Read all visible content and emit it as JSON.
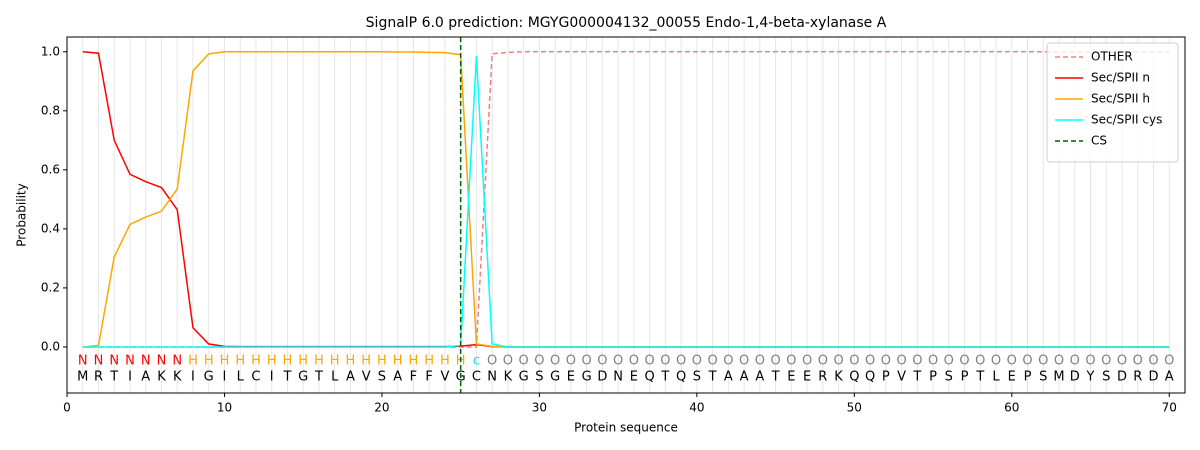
{
  "chart_data": {
    "type": "line",
    "title": "SignalP 6.0 prediction: MGYG000004132_00055 Endo-1,4-beta-xylanase A",
    "xlabel": "Protein sequence",
    "ylabel": "Probability",
    "x": [
      1,
      2,
      3,
      4,
      5,
      6,
      7,
      8,
      9,
      10,
      11,
      12,
      13,
      14,
      15,
      16,
      17,
      18,
      19,
      20,
      21,
      22,
      23,
      24,
      25,
      26,
      27,
      28,
      29,
      30,
      31,
      32,
      33,
      34,
      35,
      36,
      37,
      38,
      39,
      40,
      41,
      42,
      43,
      44,
      45,
      46,
      47,
      48,
      49,
      50,
      51,
      52,
      53,
      54,
      55,
      56,
      57,
      58,
      59,
      60,
      61,
      62,
      63,
      64,
      65,
      66,
      67,
      68,
      69,
      70
    ],
    "sequence": [
      "M",
      "R",
      "T",
      "I",
      "A",
      "K",
      "K",
      "I",
      "G",
      "I",
      "L",
      "C",
      "I",
      "T",
      "G",
      "T",
      "L",
      "A",
      "V",
      "S",
      "A",
      "F",
      "F",
      "V",
      "G",
      "C",
      "N",
      "K",
      "G",
      "S",
      "G",
      "E",
      "G",
      "D",
      "N",
      "E",
      "Q",
      "T",
      "Q",
      "S",
      "T",
      "A",
      "A",
      "A",
      "T",
      "E",
      "E",
      "R",
      "K",
      "Q",
      "Q",
      "P",
      "V",
      "T",
      "P",
      "S",
      "P",
      "T",
      "L",
      "E",
      "P",
      "S",
      "M",
      "D",
      "Y",
      "S",
      "D",
      "R",
      "D",
      "A"
    ],
    "regions": [
      "N",
      "N",
      "N",
      "N",
      "N",
      "N",
      "N",
      "H",
      "H",
      "H",
      "H",
      "H",
      "H",
      "H",
      "H",
      "H",
      "H",
      "H",
      "H",
      "H",
      "H",
      "H",
      "H",
      "H",
      "H",
      "c",
      "O",
      "O",
      "O",
      "O",
      "O",
      "O",
      "O",
      "O",
      "O",
      "O",
      "O",
      "O",
      "O",
      "O",
      "O",
      "O",
      "O",
      "O",
      "O",
      "O",
      "O",
      "O",
      "O",
      "O",
      "O",
      "O",
      "O",
      "O",
      "O",
      "O",
      "O",
      "O",
      "O",
      "O",
      "O",
      "O",
      "O",
      "O",
      "O",
      "O",
      "O",
      "O",
      "O",
      "O"
    ],
    "region_colors": {
      "N": "#ff0000",
      "H": "#ffa500",
      "c": "#00e5ee",
      "O": "#808080"
    },
    "series": [
      {
        "name": "OTHER",
        "color": "#f08080",
        "dash": true,
        "values": [
          0,
          0,
          0,
          0,
          0,
          0,
          0,
          0,
          0,
          0,
          0,
          0,
          0,
          0,
          0,
          0,
          0,
          0,
          0,
          0,
          0,
          0,
          0,
          0,
          0,
          0,
          0.993,
          0.998,
          1,
          1,
          1,
          1,
          1,
          1,
          1,
          1,
          1,
          1,
          1,
          1,
          1,
          1,
          1,
          1,
          1,
          1,
          1,
          1,
          1,
          1,
          1,
          1,
          1,
          1,
          1,
          1,
          1,
          1,
          1,
          1,
          1,
          1,
          1,
          1,
          1,
          1,
          1,
          1,
          1,
          1
        ]
      },
      {
        "name": "Sec/SPII n",
        "color": "#ff0000",
        "dash": false,
        "values": [
          1.0,
          0.995,
          0.7,
          0.585,
          0.56,
          0.54,
          0.465,
          0.065,
          0.01,
          0.002,
          0.001,
          0.001,
          0.001,
          0.001,
          0.001,
          0.001,
          0.001,
          0.001,
          0.001,
          0.001,
          0.001,
          0.001,
          0.001,
          0.001,
          0.003,
          0.008,
          0.001,
          0,
          0,
          0,
          0,
          0,
          0,
          0,
          0,
          0,
          0,
          0,
          0,
          0,
          0,
          0,
          0,
          0,
          0,
          0,
          0,
          0,
          0,
          0,
          0,
          0,
          0,
          0,
          0,
          0,
          0,
          0,
          0,
          0,
          0,
          0,
          0,
          0,
          0,
          0,
          0,
          0,
          0,
          0
        ]
      },
      {
        "name": "Sec/SPII h",
        "color": "#ffa500",
        "dash": false,
        "values": [
          0,
          0.005,
          0.305,
          0.415,
          0.44,
          0.46,
          0.535,
          0.935,
          0.993,
          1.0,
          1.0,
          1.0,
          1.0,
          1.0,
          1.0,
          1.0,
          1.0,
          1.0,
          1.0,
          1.0,
          0.999,
          0.999,
          0.998,
          0.997,
          0.99,
          0.01,
          0.002,
          0,
          0,
          0,
          0,
          0,
          0,
          0,
          0,
          0,
          0,
          0,
          0,
          0,
          0,
          0,
          0,
          0,
          0,
          0,
          0,
          0,
          0,
          0,
          0,
          0,
          0,
          0,
          0,
          0,
          0,
          0,
          0,
          0,
          0,
          0,
          0,
          0,
          0,
          0,
          0,
          0,
          0,
          0
        ]
      },
      {
        "name": "Sec/SPII cys",
        "color": "#00ffff",
        "dash": false,
        "values": [
          0,
          0,
          0,
          0,
          0,
          0,
          0,
          0,
          0,
          0,
          0,
          0,
          0,
          0,
          0,
          0,
          0,
          0,
          0,
          0,
          0,
          0,
          0,
          0,
          0.005,
          0.985,
          0.01,
          0,
          0,
          0,
          0,
          0,
          0,
          0,
          0,
          0,
          0,
          0,
          0,
          0,
          0,
          0,
          0,
          0,
          0,
          0,
          0,
          0,
          0,
          0,
          0,
          0,
          0,
          0,
          0,
          0,
          0,
          0,
          0,
          0,
          0,
          0,
          0,
          0,
          0,
          0,
          0,
          0,
          0,
          0
        ]
      }
    ],
    "vlines": [
      {
        "name": "CS",
        "color": "#006400",
        "dash": true,
        "x": 25
      }
    ],
    "xlim": [
      0,
      71
    ],
    "ylim": [
      -0.156,
      1.05
    ],
    "xticks": [
      0,
      10,
      20,
      30,
      40,
      50,
      60,
      70
    ],
    "yticks": [
      {
        "value": 0,
        "label": "0.0"
      },
      0.2,
      0.4,
      0.6,
      0.8,
      {
        "value": 1,
        "label": "1.0"
      }
    ],
    "residue_grid": true,
    "legend": "upper right"
  }
}
